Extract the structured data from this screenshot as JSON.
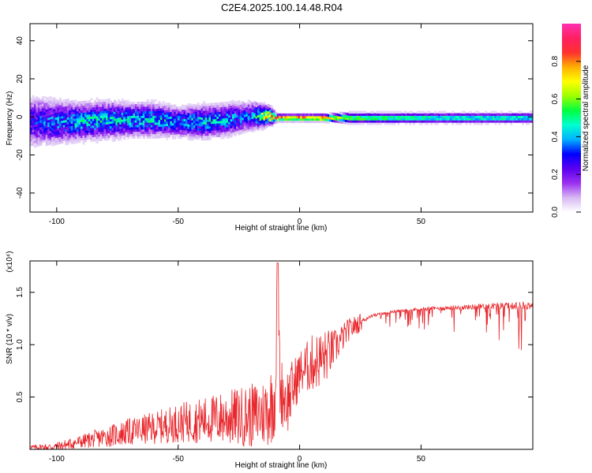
{
  "title": "C2E4.2025.100.14.48.R04",
  "colors": {
    "snr_line": "#e8262b",
    "axis": "#000000",
    "background": "#ffffff"
  },
  "chart_data": [
    {
      "type": "heatmap",
      "name": "spectrogram",
      "xlabel": "Height of straight line (km)",
      "ylabel": "Frequency (Hz)",
      "xlim": [
        -111,
        96
      ],
      "ylim": [
        -50,
        49
      ],
      "x_ticks": [
        -100,
        -50,
        0,
        50
      ],
      "y_ticks": [
        -40,
        -20,
        0,
        20,
        40
      ],
      "x_tick_labels": [
        "-100",
        "-50",
        "0",
        "50"
      ],
      "y_tick_labels": [
        "-40",
        "-20",
        "0",
        "20",
        "40"
      ],
      "colorbar": {
        "label": "Normalized spectral amplitude",
        "range": [
          0,
          1
        ],
        "ticks": [
          0.0,
          0.2,
          0.4,
          0.6,
          0.8
        ],
        "tick_labels": [
          "0.0",
          "0.2",
          "0.4",
          "0.6",
          "0.8"
        ],
        "colormap": [
          "#ffffff",
          "#d6b8f2",
          "#9b30f0",
          "#5a00f0",
          "#0000ff",
          "#00b0ff",
          "#00ffd0",
          "#00ff40",
          "#9cff00",
          "#ffff00",
          "#ffb000",
          "#ff3030",
          "#ff2060",
          "#ff30b0"
        ]
      },
      "description_points": {
        "x": [
          -110,
          -100,
          -90,
          -80,
          -70,
          -60,
          -50,
          -40,
          -30,
          -20,
          -12,
          -10,
          0,
          10,
          20,
          40,
          60,
          80,
          95
        ],
        "center_frequency": [
          -3,
          -3,
          -3,
          -2,
          -2,
          -2,
          -3,
          -3,
          -2,
          0,
          0,
          -1,
          -1,
          -1,
          -1,
          -1,
          -1,
          -1,
          -1
        ],
        "spread": [
          12,
          10,
          9,
          9,
          8,
          8,
          7,
          8,
          8,
          7,
          4,
          2,
          2,
          2,
          3,
          3,
          3,
          3,
          3
        ],
        "peak_amplitude": [
          0.3,
          0.4,
          0.45,
          0.45,
          0.45,
          0.45,
          0.4,
          0.45,
          0.4,
          0.35,
          0.9,
          0.9,
          0.85,
          0.9,
          0.6,
          0.55,
          0.5,
          0.5,
          0.5
        ]
      }
    },
    {
      "type": "line",
      "name": "snr",
      "xlabel": "Height of straight line (km)",
      "ylabel": "SNR (10 * v/v)",
      "scale_label": "(x10⁴)",
      "xlim": [
        -111,
        96
      ],
      "ylim": [
        0,
        1.8
      ],
      "x_ticks": [
        -100,
        -50,
        0,
        50
      ],
      "y_ticks": [
        0.5,
        1.0,
        1.5
      ],
      "x_tick_labels": [
        "-100",
        "-50",
        "0",
        "50"
      ],
      "y_tick_labels": [
        "0.5",
        "1.0",
        "1.5"
      ],
      "x": [
        -111,
        -100,
        -90,
        -80,
        -70,
        -60,
        -50,
        -40,
        -30,
        -20,
        -15,
        -12,
        -10,
        -9,
        -8,
        -5,
        0,
        5,
        10,
        15,
        20,
        25,
        30,
        40,
        50,
        60,
        70,
        80,
        90,
        96
      ],
      "y": [
        0.02,
        0.03,
        0.08,
        0.13,
        0.18,
        0.22,
        0.27,
        0.3,
        0.33,
        0.35,
        0.38,
        0.45,
        0.55,
        1.75,
        0.6,
        0.5,
        0.75,
        0.85,
        0.9,
        1.0,
        1.15,
        1.22,
        1.28,
        1.32,
        1.34,
        1.35,
        1.36,
        1.37,
        1.37,
        1.38
      ],
      "noise_amplitude": [
        0.02,
        0.04,
        0.06,
        0.09,
        0.12,
        0.14,
        0.17,
        0.2,
        0.24,
        0.28,
        0.3,
        0.35,
        0.35,
        0.1,
        0.3,
        0.3,
        0.2,
        0.25,
        0.25,
        0.15,
        0.1,
        0.08,
        0.07,
        0.06,
        0.08,
        0.1,
        0.12,
        0.15,
        0.18,
        0.2
      ]
    }
  ]
}
